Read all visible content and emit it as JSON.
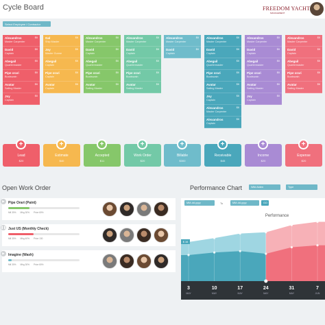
{
  "header": {
    "title": "Cycle Board",
    "logo_line1": "FREEDOM YACHT",
    "logo_line2": "MANAGEMENT"
  },
  "select_employee": {
    "label": "Select Employee / Contractor"
  },
  "columns": [
    {
      "color": "#ef5f6a",
      "cards": [
        {
          "name": "Alexandros",
          "role": "Master Carpenter",
          "amount": "$6"
        },
        {
          "name": "David",
          "role": "Captain",
          "amount": "$6"
        },
        {
          "name": "Abegail",
          "role": "Quartermaster",
          "amount": "$6"
        },
        {
          "name": "Pipe orari",
          "role": "Boatswain",
          "amount": "$6"
        },
        {
          "name": "Avatar",
          "role": "Sailing Master",
          "amount": "$6"
        },
        {
          "name": "Joy",
          "role": "Captain",
          "amount": "$6"
        }
      ]
    },
    {
      "color": "#f6b84f",
      "cards": [
        {
          "name": "Gal",
          "role": "Ship Master",
          "amount": "$6"
        },
        {
          "name": "Joy",
          "role": "Master Gunne",
          "amount": "$6"
        },
        {
          "name": "Abegail",
          "role": "Captain",
          "amount": "$6"
        },
        {
          "name": "Pipe orari",
          "role": "Captain",
          "amount": "$6"
        },
        {
          "name": "Avatar",
          "role": "Captain",
          "amount": "$6"
        }
      ]
    },
    {
      "color": "#86c76a",
      "cards": [
        {
          "name": "Alexandros",
          "role": "Master Carpenter",
          "amount": "$6"
        },
        {
          "name": "David",
          "role": "Captain",
          "amount": "$6"
        },
        {
          "name": "Abegail",
          "role": "Quartermaster",
          "amount": "$6"
        },
        {
          "name": "Pipe orari",
          "role": "Boatswain",
          "amount": "$6"
        },
        {
          "name": "Avatar",
          "role": "Sailing Master",
          "amount": "$6"
        }
      ]
    },
    {
      "color": "#73c9a7",
      "cards": [
        {
          "name": "Alexandros",
          "role": "Master Carpenter",
          "amount": "$6"
        },
        {
          "name": "David",
          "role": "Captain",
          "amount": "$6"
        },
        {
          "name": "Abegail",
          "role": "Quartermaster",
          "amount": "$6"
        },
        {
          "name": "Pipe orari",
          "role": "Boatswain",
          "amount": "$6"
        },
        {
          "name": "Avatar",
          "role": "Sailing Master",
          "amount": "$6"
        }
      ]
    },
    {
      "color": "#6fbccb",
      "cards": [
        {
          "name": "Alexandros",
          "role": "Master Carpenter",
          "amount": "$6"
        },
        {
          "name": "David",
          "role": "Captain",
          "amount": "$6"
        }
      ]
    },
    {
      "color": "#4aa7bb",
      "cards": [
        {
          "name": "Alexandros",
          "role": "Master Carpenter",
          "amount": "$6"
        },
        {
          "name": "David",
          "role": "Captain",
          "amount": "$6"
        },
        {
          "name": "Abegail",
          "role": "Quartermaster",
          "amount": "$6"
        },
        {
          "name": "Pipe orari",
          "role": "Boatswain",
          "amount": "$6"
        },
        {
          "name": "Avatar",
          "role": "Sailing Master",
          "amount": "$6"
        },
        {
          "name": "Joy",
          "role": "Captain",
          "amount": "$6"
        },
        {
          "name": "Alexandros",
          "role": "Master Carpenter",
          "amount": "$6"
        },
        {
          "name": "Alexandros",
          "role": "Captain",
          "amount": "$6"
        }
      ]
    },
    {
      "color": "#a98bd4",
      "cards": [
        {
          "name": "Alexandros",
          "role": "Master Carpenter",
          "amount": "$6"
        },
        {
          "name": "David",
          "role": "Captain",
          "amount": "$6"
        },
        {
          "name": "Abegail",
          "role": "Quartermaster",
          "amount": "$6"
        },
        {
          "name": "Pipe orari",
          "role": "Boatswain",
          "amount": "$6"
        },
        {
          "name": "Avatar",
          "role": "Sailing Master",
          "amount": "$6"
        },
        {
          "name": "Joy",
          "role": "Captain",
          "amount": "$6"
        }
      ]
    },
    {
      "color": "#f0707d",
      "cards": [
        {
          "name": "Alexandros",
          "role": "Master Carpenter",
          "amount": "$6"
        },
        {
          "name": "David",
          "role": "Captain",
          "amount": "$6"
        },
        {
          "name": "Abegail",
          "role": "Quartermaster",
          "amount": "$6"
        },
        {
          "name": "Pipe orari",
          "role": "Boatswain",
          "amount": "$6"
        },
        {
          "name": "Avatar",
          "role": "Sailing Master",
          "amount": "$6"
        }
      ]
    }
  ],
  "stages": [
    {
      "label": "Lead",
      "value": "$20",
      "color": "#ef5f6a"
    },
    {
      "label": "Estimate",
      "value": "$40",
      "color": "#f6b84f"
    },
    {
      "label": "Accepted",
      "value": "$11",
      "color": "#86c76a"
    },
    {
      "label": "Work Order",
      "value": "$20",
      "color": "#73c9a7"
    },
    {
      "label": "Billable",
      "value": "$300",
      "color": "#6fbccb"
    },
    {
      "label": "Receivable",
      "value": "$45",
      "color": "#4aa7bb"
    },
    {
      "label": "Income",
      "value": "$20",
      "color": "#a98bd4"
    },
    {
      "label": "Expense",
      "value": "$20",
      "color": "#f0707d"
    }
  ],
  "open_work_order": {
    "title": "Open Work Order",
    "items": [
      {
        "name": "Pipe Orari (Paint)",
        "progress": 0.3,
        "bar_color": "#86c76a",
        "stats": [
          "Mtl 30%",
          "Mhg 30%",
          "Price 60%"
        ]
      },
      {
        "name": "Just US (Monthly Check)",
        "progress": 0.36,
        "bar_color": "#ef5f6a",
        "stats": [
          "Mtl 30%",
          "Mhg 40%",
          "Price 130"
        ]
      },
      {
        "name": "Imagine (Wash)",
        "progress": 0.05,
        "bar_color": "#6fbccb",
        "stats": [
          "Mtl 30%",
          "Mhg 30%",
          "Price 60%"
        ]
      }
    ]
  },
  "performance": {
    "title": "Performance Chart",
    "dropdown1": "Wild Aiden",
    "dropdown2": "Type",
    "from_value": "MM-dd-yyyy",
    "to_label": "To",
    "to_value": "MM-dd-yyyy",
    "go_label": "GO"
  },
  "chart_data": {
    "type": "area",
    "title": "Performance",
    "categories": [
      "3 MAY",
      "10 MAY",
      "17 MAY",
      "24 MAY",
      "31 MAY",
      "7 JUN"
    ],
    "tick_day": [
      "3",
      "10",
      "17",
      "24",
      "31",
      "7"
    ],
    "tick_month": [
      "MAY",
      "MAY",
      "MAY",
      "MAY",
      "MAY",
      "JUN"
    ],
    "marker_label": "$ 16",
    "split_index": 3,
    "series": [
      {
        "values": [
          60,
          66,
          73,
          75,
          86,
          91
        ]
      },
      {
        "values": [
          40,
          44,
          46,
          42,
          52,
          55
        ]
      }
    ],
    "ylim": [
      0,
      100
    ],
    "colors": {
      "past_dark": "#4aa7bb",
      "past_light": "#9fd6e2",
      "future_dark": "#f0707d",
      "future_light": "#f7b1b7"
    },
    "grid": true
  }
}
